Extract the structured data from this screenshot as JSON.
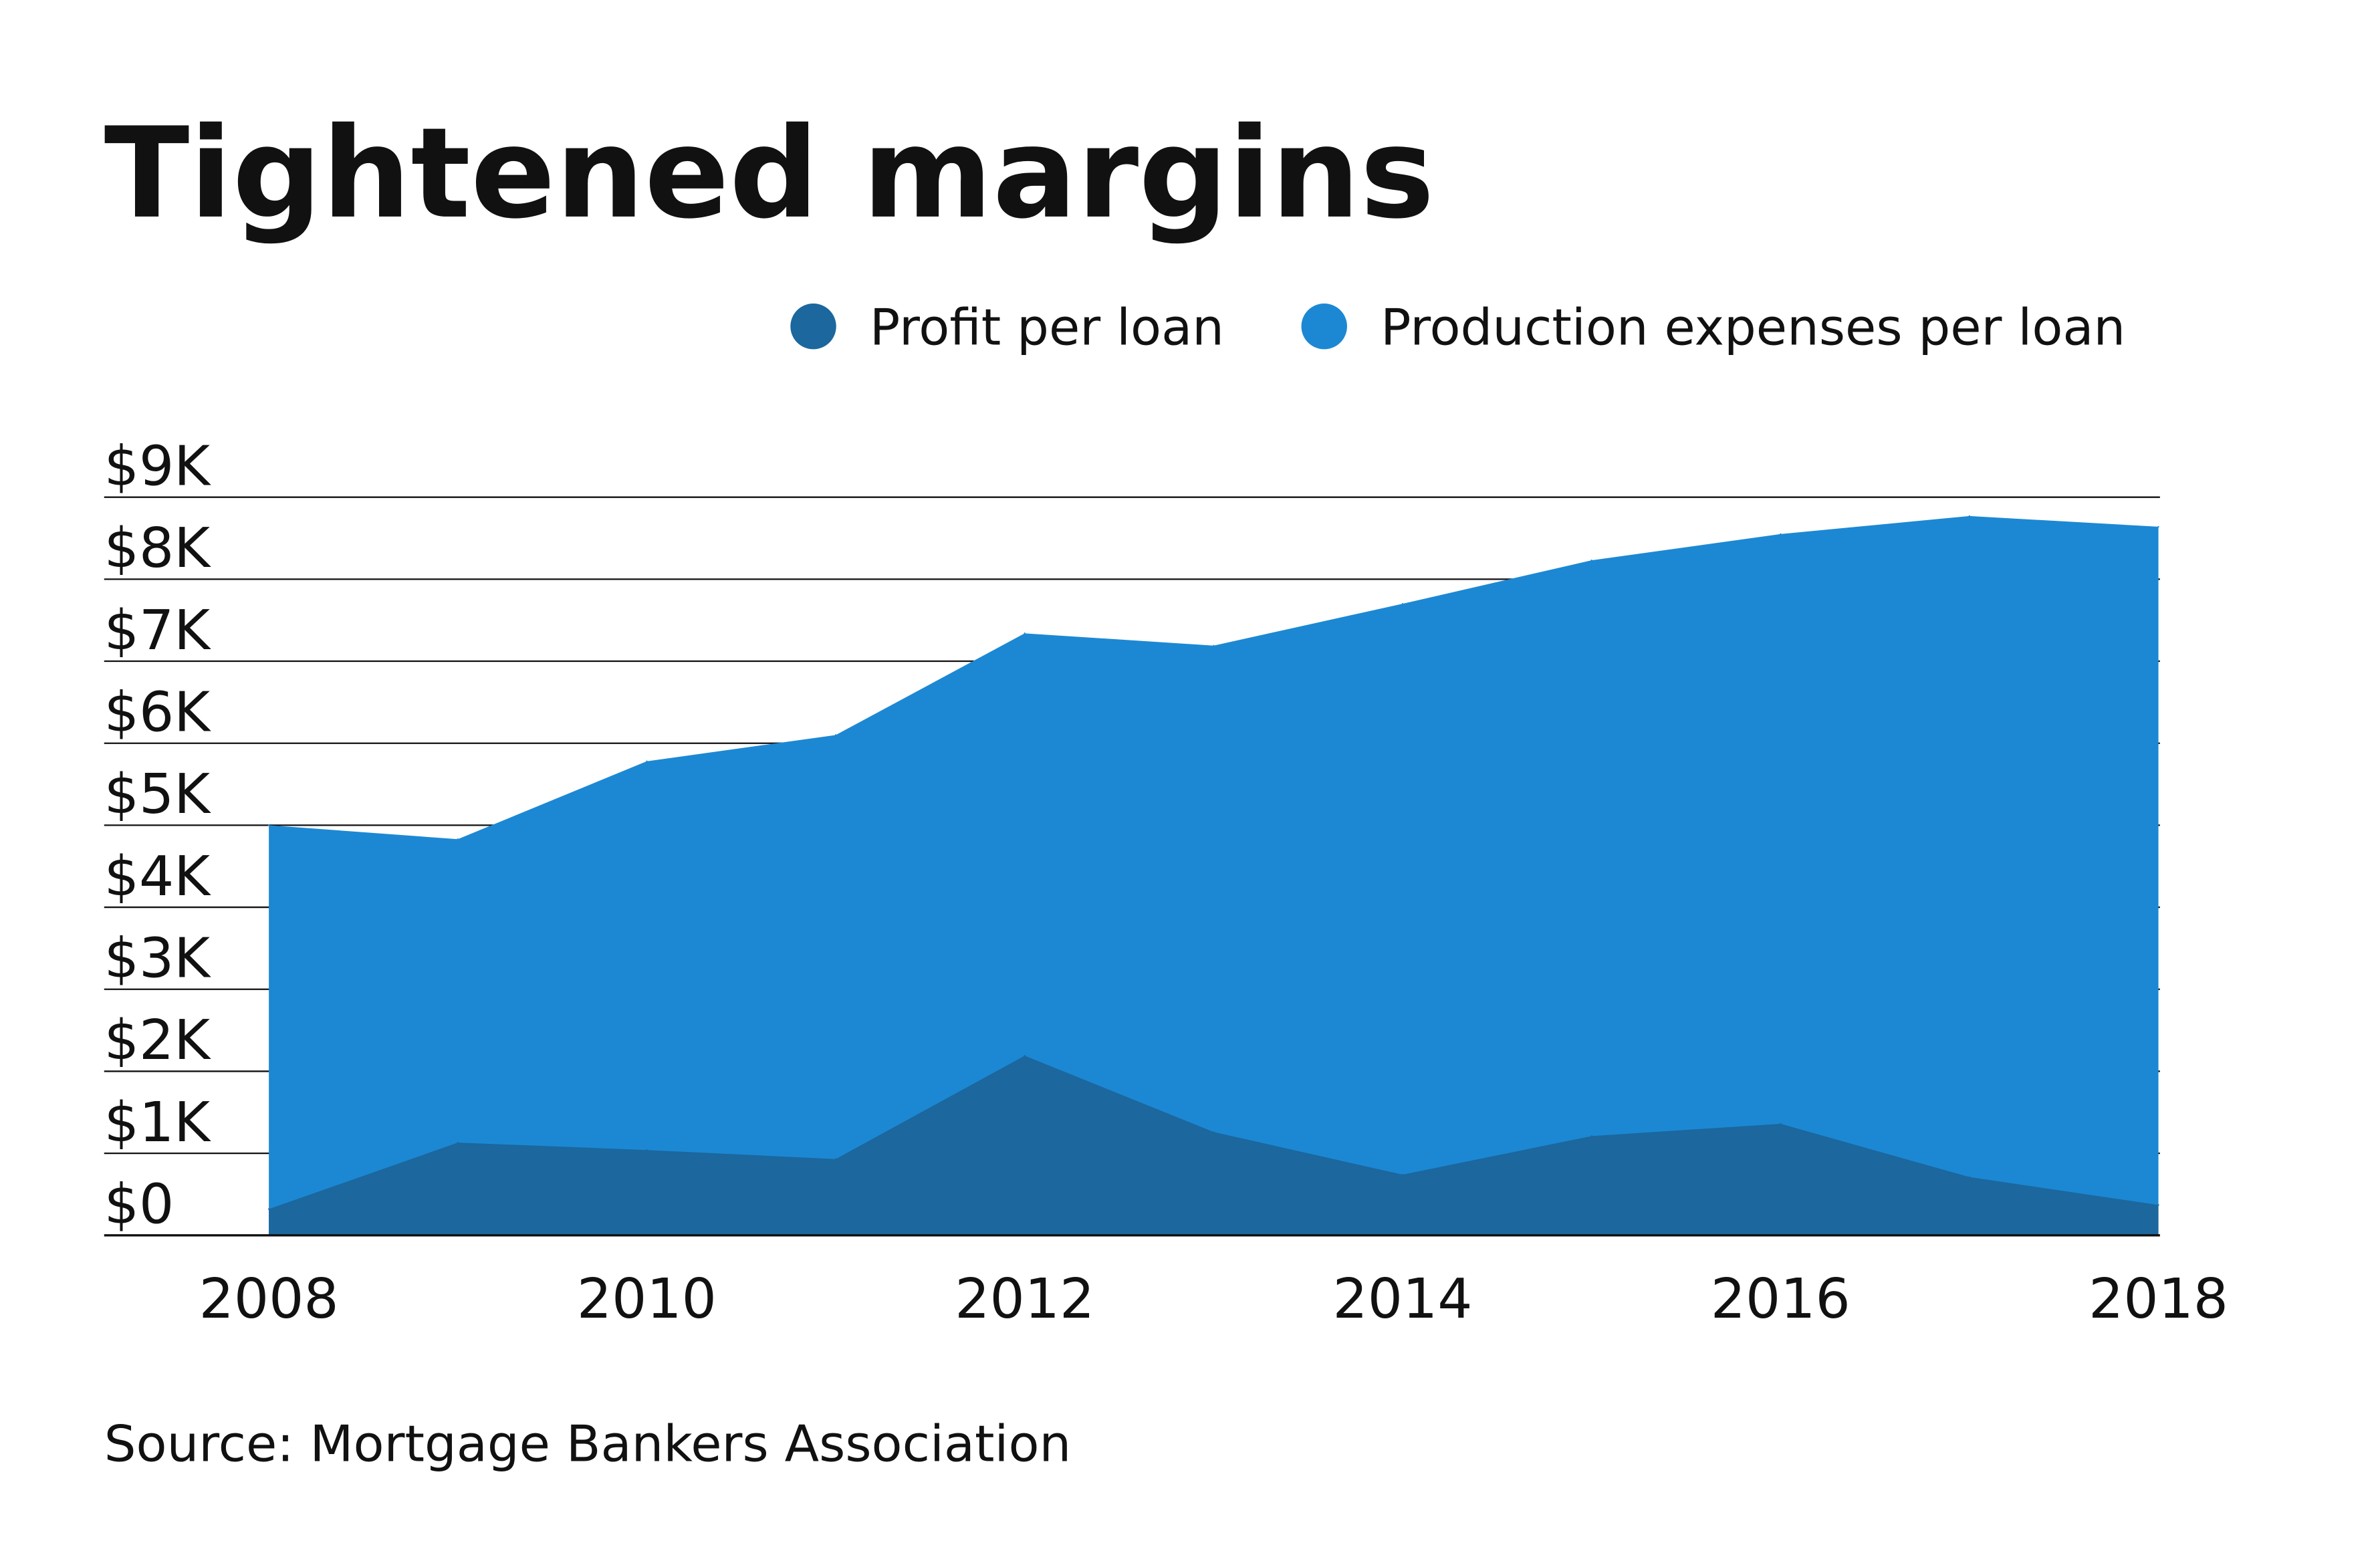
{
  "chart_data": {
    "type": "area",
    "title": "Tightened margins",
    "source": "Source: Mortgage Bankers Association",
    "x": [
      2008,
      2009,
      2010,
      2011,
      2012,
      2013,
      2014,
      2015,
      2016,
      2017,
      2018
    ],
    "x_tick_labels": [
      "2008",
      "2010",
      "2012",
      "2014",
      "2016",
      "2018"
    ],
    "y_tick_labels": [
      "$0",
      "$1K",
      "$2K",
      "$3K",
      "$4K",
      "$5K",
      "$6K",
      "$7K",
      "$8K",
      "$9K"
    ],
    "ylim": [
      0,
      9000
    ],
    "grid": true,
    "legend_position": "top-right",
    "series": [
      {
        "name": "Production expenses per loan",
        "color": "#1c88d3",
        "values": [
          5000,
          4830,
          5780,
          6100,
          7340,
          7190,
          7700,
          8230,
          8550,
          8770,
          8640
        ]
      },
      {
        "name": "Profit per loan",
        "color": "#1b679e",
        "values": [
          320,
          1130,
          1040,
          930,
          2190,
          1260,
          740,
          1210,
          1360,
          710,
          370
        ]
      }
    ],
    "legend": [
      "Profit per loan",
      "Production expenses per loan"
    ]
  }
}
